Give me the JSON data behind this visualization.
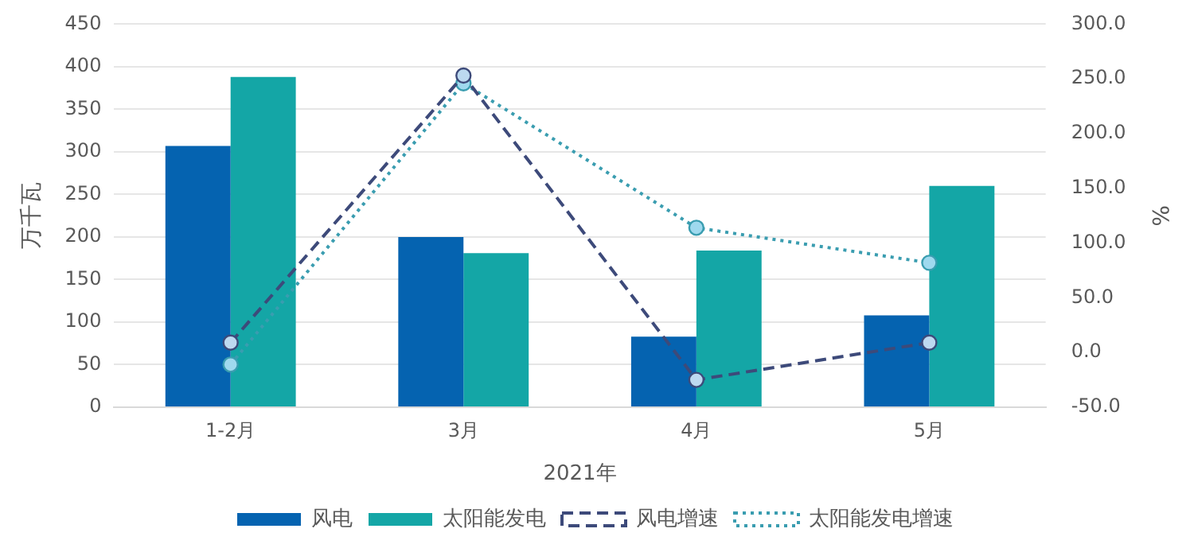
{
  "chart_data": {
    "type": "bar",
    "categories": [
      "1-2月",
      "3月",
      "4月",
      "5月"
    ],
    "xlabel": "2021年",
    "ylabel": "万千瓦",
    "y2label": "%",
    "ylim": [
      0,
      450
    ],
    "yticks": [
      0,
      50,
      100,
      150,
      200,
      250,
      300,
      350,
      400,
      450
    ],
    "y2lim": [
      -50,
      300
    ],
    "y2ticks": [
      {
        "value": -50,
        "label": "-50.0"
      },
      {
        "value": 0,
        "label": "0.0"
      },
      {
        "value": 50,
        "label": "50.0"
      },
      {
        "value": 100,
        "label": "100.0"
      },
      {
        "value": 150,
        "label": "150.0"
      },
      {
        "value": 200,
        "label": "200.0"
      },
      {
        "value": 250,
        "label": "250.0"
      },
      {
        "value": 300,
        "label": "300.0"
      }
    ],
    "grid": "y",
    "legend": "bottom",
    "marker": "circle",
    "series": [
      {
        "name": "风电",
        "color": "#0563b0",
        "values": [
          307,
          200,
          83,
          108
        ]
      },
      {
        "name": "太阳能发电",
        "color": "#14a6a6",
        "values": [
          388,
          181,
          184,
          260
        ]
      },
      {
        "name": "风电增速",
        "type": "line",
        "axis": "y2",
        "line_style": "dashed",
        "color": "#3d4a7a",
        "values": [
          9,
          253,
          -25,
          9
        ]
      },
      {
        "name": "太阳能发电增速",
        "type": "line",
        "axis": "y2",
        "line_style": "dotted",
        "color": "#3a9db0",
        "values": [
          -11,
          246,
          114,
          82
        ]
      }
    ]
  }
}
